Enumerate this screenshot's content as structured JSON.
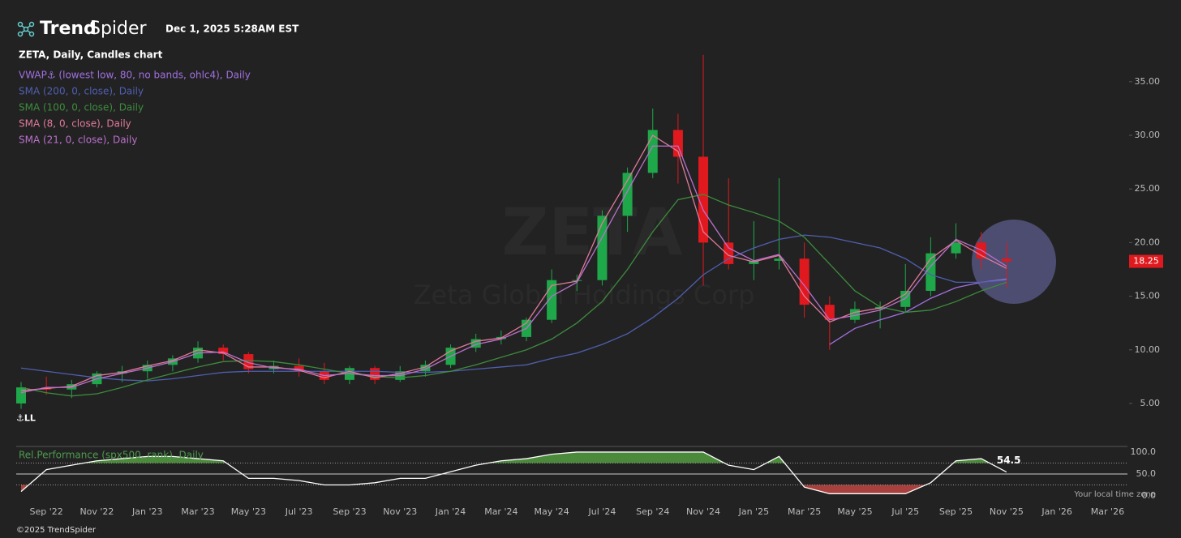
{
  "header": {
    "brand_bold": "Trend",
    "brand_light": "Spider",
    "timestamp": "Dec 1, 2025 5:28AM EST"
  },
  "footer": {
    "copyright": "©2025 TrendSpider",
    "timezone_note": "Your local time zone"
  },
  "chart_data": [
    {
      "type": "candlestick",
      "title": "ZETA, Daily, Candles chart",
      "watermark": "ZETA",
      "watermark_subtitle": "Zeta Global Holdings Corp",
      "annotation": "⚓LL",
      "up_color": "#1fa84a",
      "down_color": "#e0191e",
      "last_price_color": "#e0191e",
      "categories": [
        null,
        "Sep '22",
        null,
        "Nov '22",
        null,
        "Jan '23",
        null,
        "Mar '23",
        null,
        "May '23",
        null,
        "Jul '23",
        null,
        "Sep '23",
        null,
        "Nov '23",
        null,
        "Jan '24",
        null,
        "Mar '24",
        null,
        "May '24",
        null,
        "Jul '24",
        null,
        "Sep '24",
        null,
        "Nov '24",
        null,
        "Jan '25",
        null,
        "Mar '25",
        null,
        "May '25",
        null,
        "Jul '25",
        null,
        "Sep '25",
        null,
        "Nov '25",
        null,
        "Jan '26",
        null,
        "Mar '26"
      ],
      "open": [
        5.0,
        6.5,
        6.3,
        6.8,
        7.8,
        8.0,
        8.6,
        9.2,
        10.2,
        9.6,
        8.2,
        8.5,
        8.0,
        7.2,
        8.3,
        7.2,
        8.0,
        8.6,
        10.2,
        11.0,
        11.2,
        12.8,
        16.5,
        16.5,
        22.5,
        26.5,
        30.5,
        28.0,
        20.0,
        18.0,
        18.3,
        18.5,
        14.2,
        12.8,
        13.8,
        14.0,
        15.5,
        19.0,
        20.0,
        18.5,
        null,
        null,
        null,
        null
      ],
      "high": [
        7.0,
        7.5,
        7.2,
        8.0,
        8.5,
        9.0,
        9.5,
        10.8,
        10.5,
        9.8,
        9.0,
        9.2,
        8.8,
        8.5,
        8.5,
        8.5,
        9.0,
        10.5,
        11.5,
        11.8,
        13.0,
        17.5,
        17.0,
        23.0,
        27.0,
        32.5,
        32.0,
        37.5,
        26.0,
        22.0,
        26.0,
        20.0,
        15.0,
        14.5,
        14.5,
        18.0,
        20.5,
        21.8,
        21.0,
        20.0,
        null,
        null,
        null,
        null
      ],
      "low": [
        4.5,
        5.8,
        5.5,
        6.5,
        7.0,
        7.3,
        8.0,
        8.8,
        9.0,
        7.8,
        7.8,
        7.5,
        6.8,
        6.8,
        6.8,
        7.0,
        7.5,
        8.3,
        9.8,
        10.5,
        10.8,
        12.5,
        15.5,
        16.0,
        21.0,
        26.0,
        25.5,
        16.0,
        17.5,
        16.5,
        17.5,
        13.0,
        10.0,
        12.5,
        12.0,
        13.5,
        15.0,
        18.5,
        17.5,
        15.8,
        null,
        null,
        null,
        null
      ],
      "close": [
        6.5,
        6.3,
        6.8,
        7.8,
        8.0,
        8.6,
        9.2,
        10.2,
        9.6,
        8.2,
        8.5,
        8.0,
        7.2,
        8.3,
        7.2,
        8.0,
        8.6,
        10.2,
        11.0,
        11.2,
        12.8,
        16.5,
        16.5,
        22.5,
        26.5,
        30.5,
        28.0,
        20.0,
        18.0,
        18.3,
        18.5,
        14.2,
        12.8,
        13.8,
        14.0,
        15.5,
        19.0,
        20.0,
        18.5,
        18.25,
        null,
        null,
        null,
        null
      ],
      "series": [
        {
          "name": "VWAP⚓ (lowest low, 80, no bands, ohlc4), Daily",
          "color": "#a070e0",
          "values": [
            null,
            null,
            null,
            null,
            null,
            null,
            null,
            null,
            null,
            null,
            null,
            null,
            null,
            null,
            null,
            null,
            null,
            null,
            null,
            null,
            null,
            null,
            null,
            null,
            null,
            null,
            null,
            null,
            null,
            null,
            null,
            null,
            10.5,
            12.0,
            12.8,
            13.5,
            14.8,
            15.8,
            16.3,
            16.6,
            null,
            null,
            null,
            null
          ]
        },
        {
          "name": "SMA (200, 0, close), Daily",
          "color": "#4f5fb0",
          "values": [
            8.3,
            8.0,
            7.7,
            7.4,
            7.2,
            7.1,
            7.3,
            7.6,
            7.9,
            8.0,
            8.0,
            8.0,
            8.0,
            8.0,
            8.0,
            7.9,
            7.9,
            8.0,
            8.2,
            8.4,
            8.6,
            9.2,
            9.7,
            10.5,
            11.5,
            13.0,
            14.8,
            17.0,
            18.5,
            19.5,
            20.3,
            20.7,
            20.5,
            20.0,
            19.5,
            18.5,
            17.0,
            16.3,
            16.3,
            16.5,
            null,
            null,
            null,
            null
          ]
        },
        {
          "name": "SMA (100, 0, close), Daily",
          "color": "#3d8c3d",
          "values": [
            6.5,
            6.0,
            5.7,
            5.9,
            6.5,
            7.2,
            7.8,
            8.4,
            8.9,
            9.0,
            8.9,
            8.6,
            8.2,
            7.8,
            7.5,
            7.4,
            7.6,
            8.0,
            8.6,
            9.3,
            10.0,
            11.0,
            12.5,
            14.5,
            17.5,
            21.0,
            24.0,
            24.5,
            23.5,
            22.8,
            22.0,
            20.5,
            18.0,
            15.5,
            14.0,
            13.5,
            13.7,
            14.5,
            15.5,
            16.3,
            null,
            null,
            null,
            null
          ]
        },
        {
          "name": "SMA (8, 0, close), Daily",
          "color": "#e07a9a",
          "values": [
            6.2,
            6.4,
            6.6,
            7.6,
            7.9,
            8.5,
            9.0,
            10.0,
            9.7,
            8.4,
            8.4,
            8.1,
            7.4,
            8.0,
            7.4,
            7.8,
            8.4,
            9.9,
            10.8,
            11.1,
            12.5,
            16.0,
            16.4,
            21.8,
            25.8,
            30.0,
            28.5,
            21.0,
            18.8,
            18.2,
            18.8,
            15.0,
            12.6,
            13.5,
            13.9,
            15.2,
            18.5,
            20.2,
            18.8,
            17.6,
            null,
            null,
            null,
            null
          ]
        },
        {
          "name": "SMA (21, 0, close), Daily",
          "color": "#bb70cc",
          "values": [
            6.0,
            6.5,
            6.5,
            7.3,
            7.8,
            8.3,
            8.9,
            9.7,
            9.8,
            8.8,
            8.3,
            8.2,
            7.6,
            7.8,
            7.6,
            7.6,
            8.2,
            9.4,
            10.5,
            11.0,
            12.0,
            15.0,
            16.3,
            20.5,
            24.8,
            29.0,
            29.0,
            23.0,
            19.5,
            18.3,
            18.9,
            16.0,
            12.8,
            13.2,
            13.7,
            14.8,
            17.8,
            20.3,
            19.3,
            17.8,
            null,
            null,
            null,
            null
          ]
        }
      ],
      "ylim": [
        1.22,
        38.46
      ],
      "yticks": [
        {
          "value": 5,
          "label": "5.00"
        },
        {
          "value": 10,
          "label": "10.00"
        },
        {
          "value": 15,
          "label": "15.00"
        },
        {
          "value": 20,
          "label": "20.00"
        },
        {
          "value": 25,
          "label": "25.00"
        },
        {
          "value": 30,
          "label": "30.00"
        },
        {
          "value": 35,
          "label": "35.00"
        }
      ]
    },
    {
      "type": "line",
      "title": "Rel.Performance (spx500, rank), Daily",
      "color": "#ffffff",
      "upper_band": 75,
      "lower_band": 25,
      "upper_color": "#4a8a3a",
      "lower_color": "#a8413e",
      "values": [
        10,
        60,
        70,
        80,
        85,
        90,
        90,
        85,
        80,
        40,
        40,
        35,
        25,
        25,
        30,
        40,
        40,
        55,
        70,
        80,
        85,
        95,
        100,
        100,
        100,
        100,
        100,
        100,
        70,
        60,
        90,
        20,
        5,
        5,
        5,
        5,
        30,
        80,
        85,
        54.5,
        null,
        null,
        null,
        null
      ],
      "ylim": [
        -5.5,
        111
      ],
      "yticks": [
        {
          "value": 0,
          "label": "0.0"
        },
        {
          "value": 50,
          "label": "50.0"
        },
        {
          "value": 100,
          "label": "100.0"
        }
      ]
    }
  ]
}
